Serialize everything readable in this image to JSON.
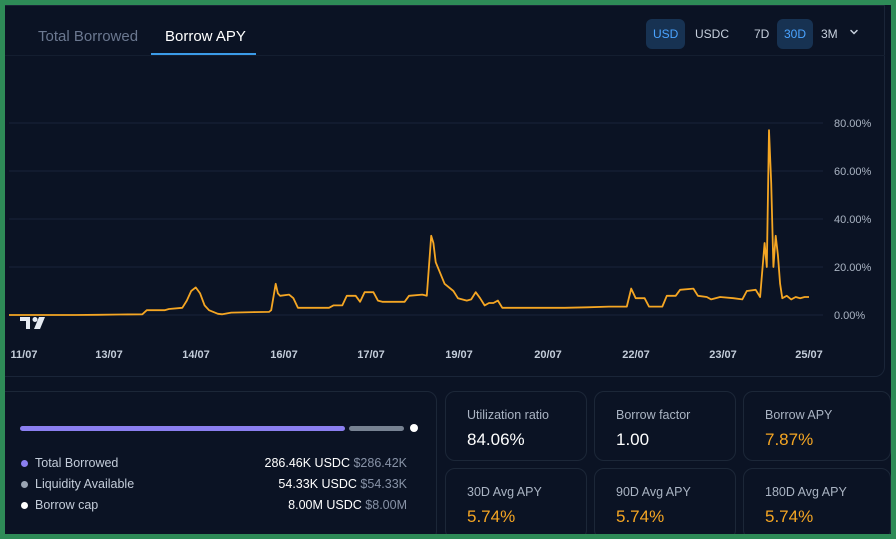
{
  "tabs": [
    {
      "label": "Total Borrowed",
      "active": false
    },
    {
      "label": "Borrow APY",
      "active": true
    }
  ],
  "currency_toggle": [
    {
      "label": "USD",
      "active": true
    },
    {
      "label": "USDC",
      "active": false
    }
  ],
  "range_toggle": [
    {
      "label": "7D",
      "active": false
    },
    {
      "label": "30D",
      "active": true
    },
    {
      "label": "3M",
      "active": false
    }
  ],
  "chart_data": {
    "type": "line",
    "x_ticks": [
      "11/07",
      "13/07",
      "14/07",
      "16/07",
      "17/07",
      "19/07",
      "20/07",
      "22/07",
      "23/07",
      "25/07"
    ],
    "y_ticks": [
      "80.00%",
      "60.00%",
      "40.00%",
      "20.00%",
      "0.00%"
    ],
    "ylim": [
      0,
      80
    ],
    "grid": true,
    "line_color": "#f5a623",
    "series": [
      {
        "values": [
          [
            0,
            0
          ],
          [
            0.2,
            0
          ],
          [
            0.4,
            0
          ],
          [
            0.6,
            0
          ],
          [
            0.8,
            0
          ],
          [
            1,
            0
          ],
          [
            1.5,
            0
          ],
          [
            2,
            0.1
          ],
          [
            2.5,
            0.2
          ],
          [
            3,
            0.3
          ],
          [
            3.1,
            2
          ],
          [
            3.5,
            2
          ],
          [
            3.6,
            2.5
          ],
          [
            3.9,
            3
          ],
          [
            4,
            6
          ],
          [
            4.1,
            10
          ],
          [
            4.2,
            11.5
          ],
          [
            4.3,
            9
          ],
          [
            4.4,
            4
          ],
          [
            4.5,
            2
          ],
          [
            4.7,
            0.5
          ],
          [
            4.8,
            0.3
          ],
          [
            5,
            1
          ],
          [
            5.5,
            1.2
          ],
          [
            5.85,
            1.3
          ],
          [
            5.9,
            2
          ],
          [
            6,
            13
          ],
          [
            6.05,
            9
          ],
          [
            6.1,
            8
          ],
          [
            6.3,
            8.5
          ],
          [
            6.4,
            7
          ],
          [
            6.5,
            3
          ],
          [
            7,
            3
          ],
          [
            7.2,
            3
          ],
          [
            7.3,
            4
          ],
          [
            7.5,
            4
          ],
          [
            7.6,
            8
          ],
          [
            7.8,
            8
          ],
          [
            7.9,
            5.5
          ],
          [
            8,
            9.5
          ],
          [
            8.2,
            9.5
          ],
          [
            8.3,
            6
          ],
          [
            8.4,
            5.5
          ],
          [
            8.5,
            5.5
          ],
          [
            8.9,
            5.5
          ],
          [
            9,
            8
          ],
          [
            9.3,
            8.5
          ],
          [
            9.4,
            8
          ],
          [
            9.5,
            33
          ],
          [
            9.55,
            30
          ],
          [
            9.6,
            22
          ],
          [
            9.8,
            13
          ],
          [
            10,
            10
          ],
          [
            10.1,
            7
          ],
          [
            10.3,
            6
          ],
          [
            10.4,
            6.5
          ],
          [
            10.5,
            9.5
          ],
          [
            10.6,
            7
          ],
          [
            10.7,
            4
          ],
          [
            10.8,
            5
          ],
          [
            10.9,
            5
          ],
          [
            11,
            6
          ],
          [
            11.1,
            3
          ],
          [
            11.5,
            3
          ],
          [
            12,
            3
          ],
          [
            12.5,
            3
          ],
          [
            13,
            3.2
          ],
          [
            13.5,
            3.5
          ],
          [
            13.9,
            3.5
          ],
          [
            14,
            11
          ],
          [
            14.1,
            7
          ],
          [
            14.3,
            7
          ],
          [
            14.4,
            3.5
          ],
          [
            14.7,
            3.5
          ],
          [
            14.8,
            8
          ],
          [
            15,
            8
          ],
          [
            15.1,
            10.5
          ],
          [
            15.4,
            11
          ],
          [
            15.5,
            8
          ],
          [
            15.7,
            7.5
          ],
          [
            15.8,
            6.5
          ],
          [
            16,
            7.5
          ],
          [
            16.3,
            7
          ],
          [
            16.5,
            6.5
          ],
          [
            16.6,
            10
          ],
          [
            16.8,
            10.5
          ],
          [
            16.9,
            7.5
          ],
          [
            17,
            30
          ],
          [
            17.05,
            20
          ],
          [
            17.1,
            77
          ],
          [
            17.15,
            55
          ],
          [
            17.2,
            20
          ],
          [
            17.25,
            33
          ],
          [
            17.3,
            25
          ],
          [
            17.35,
            13
          ],
          [
            17.4,
            7
          ],
          [
            17.5,
            8
          ],
          [
            17.6,
            6.5
          ],
          [
            17.7,
            7.5
          ],
          [
            17.8,
            7
          ],
          [
            17.9,
            7.5
          ],
          [
            18,
            7.5
          ]
        ]
      }
    ]
  },
  "supply": {
    "items": [
      {
        "label": "Total Borrowed",
        "amount": "286.46K USDC",
        "usd": "$286.42K",
        "color": "#8b7ff0"
      },
      {
        "label": "Liquidity Available",
        "amount": "54.33K USDC",
        "usd": "$54.33K",
        "color": "#9aa4b3"
      },
      {
        "label": "Borrow cap",
        "amount": "8.00M USDC",
        "usd": "$8.00M",
        "color": "#ffffff"
      }
    ],
    "borrowed_fraction": 0.84
  },
  "stats": [
    {
      "label": "Utilization ratio",
      "value": "84.06%",
      "highlight": false
    },
    {
      "label": "Borrow factor",
      "value": "1.00",
      "highlight": false
    },
    {
      "label": "Borrow APY",
      "value": "7.87%",
      "highlight": true
    },
    {
      "label": "30D Avg APY",
      "value": "5.74%",
      "highlight": true
    },
    {
      "label": "90D Avg APY",
      "value": "5.74%",
      "highlight": true
    },
    {
      "label": "180D Avg APY",
      "value": "5.74%",
      "highlight": true
    }
  ]
}
